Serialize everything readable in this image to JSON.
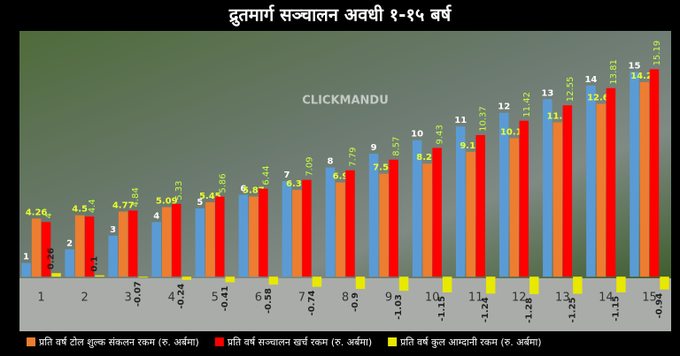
{
  "chart_data": {
    "type": "bar",
    "title": "द्रुतमार्ग सञ्चालन अवधी १-१५ बर्ष",
    "watermark": "CLICKMANDU",
    "categories": [
      "1",
      "2",
      "3",
      "4",
      "5",
      "6",
      "7",
      "8",
      "9",
      "10",
      "11",
      "12",
      "13",
      "14",
      "15"
    ],
    "series": [
      {
        "color": "#5b9bd5",
        "values": [
          1,
          2,
          3,
          4,
          5,
          6,
          7,
          8,
          9,
          10,
          11,
          12,
          13,
          14,
          15
        ]
      },
      {
        "name": "प्रति वर्ष टोल शुल्क संकलन रकम (रु. अर्बमा)",
        "color": "#ed7d31",
        "values": [
          4.26,
          4.5,
          4.77,
          5.09,
          5.45,
          5.87,
          6.35,
          6.9,
          7.54,
          8.28,
          9.14,
          10.14,
          11.3,
          12.66,
          14.25
        ]
      },
      {
        "name": "प्रति वर्ष सञ्चालन खर्च रकम (रु. अर्बमा)",
        "color": "#ff0000",
        "values": [
          4,
          4.4,
          4.84,
          5.33,
          5.86,
          6.44,
          7.09,
          7.79,
          8.57,
          9.43,
          10.37,
          11.42,
          12.55,
          13.81,
          15.19
        ]
      },
      {
        "name": "प्रति वर्ष कुल आम्दानी  रकम (रु. अर्बमा)",
        "color": "#e8e800",
        "values": [
          0.26,
          0.1,
          -0.07,
          -0.24,
          -0.41,
          -0.58,
          -0.74,
          -0.9,
          -1.03,
          -1.15,
          -1.24,
          -1.28,
          -1.25,
          -1.15,
          -0.94
        ]
      }
    ],
    "ylim": [
      -4,
      18
    ]
  }
}
